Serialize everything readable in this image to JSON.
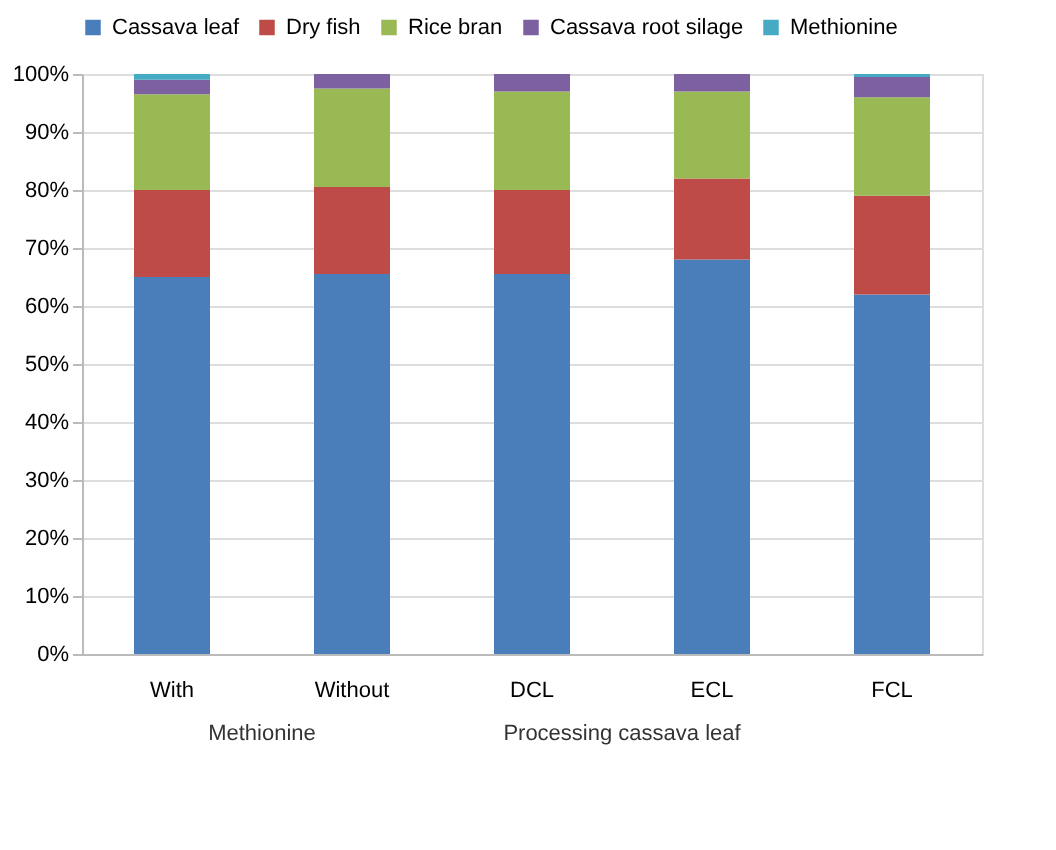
{
  "chart_data": {
    "type": "bar",
    "stacked": true,
    "categories": [
      "With",
      "Without",
      "DCL",
      "ECL",
      "FCL"
    ],
    "series": [
      {
        "name": "Cassava leaf",
        "color": "#4a7ebb",
        "values": [
          65,
          65.5,
          65.5,
          68,
          62
        ]
      },
      {
        "name": "Dry fish",
        "color": "#be4b48",
        "values": [
          15,
          15,
          14.5,
          14,
          17
        ]
      },
      {
        "name": "Rice bran",
        "color": "#98b954",
        "values": [
          16.5,
          17,
          17,
          15,
          17
        ]
      },
      {
        "name": "Cassava root silage",
        "color": "#7d60a0",
        "values": [
          2.5,
          2.5,
          3,
          3,
          3.5
        ]
      },
      {
        "name": "Methionine",
        "color": "#46aac5",
        "values": [
          1,
          0,
          0,
          0,
          0.5
        ]
      }
    ],
    "ylim": [
      0,
      100
    ],
    "yticks": [
      {
        "value": 0,
        "label": "0%"
      },
      {
        "value": 10,
        "label": "10%"
      },
      {
        "value": 20,
        "label": "20%"
      },
      {
        "value": 30,
        "label": "30%"
      },
      {
        "value": 40,
        "label": "40%"
      },
      {
        "value": 50,
        "label": "50%"
      },
      {
        "value": 60,
        "label": "60%"
      },
      {
        "value": 70,
        "label": "70%"
      },
      {
        "value": 80,
        "label": "80%"
      },
      {
        "value": 90,
        "label": "90%"
      },
      {
        "value": 100,
        "label": "100%"
      }
    ],
    "grid": "y",
    "legend": "top",
    "annotations": [
      "Methionine",
      "Processing cassava leaf"
    ]
  }
}
